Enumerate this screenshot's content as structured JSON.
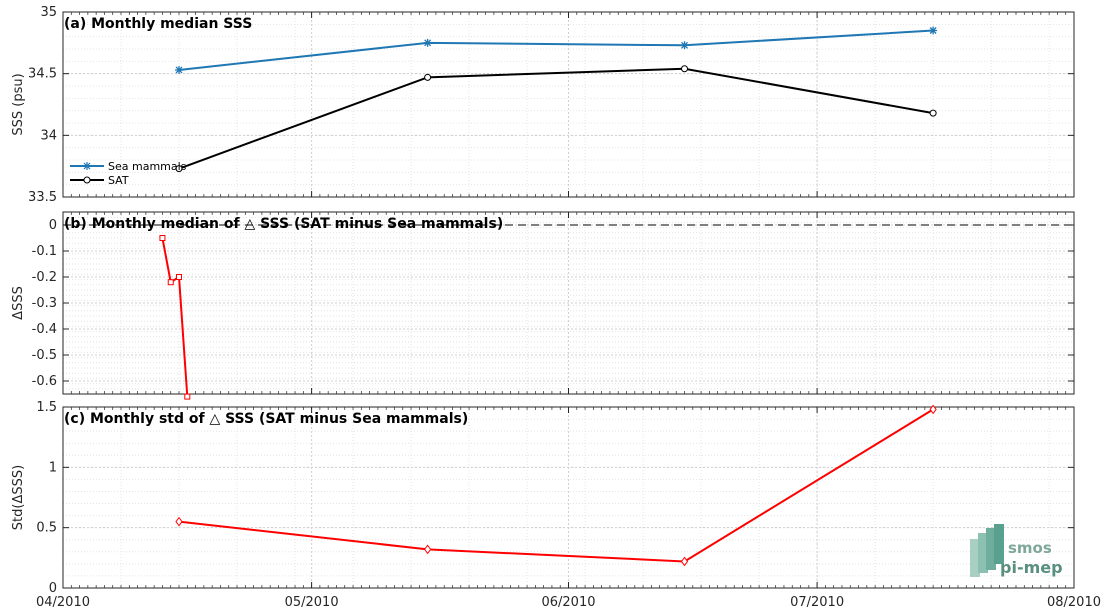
{
  "chart_data": [
    {
      "type": "line",
      "title": "(a) Monthly median SSS",
      "ylabel": "SSS (psu)",
      "xlim": [
        "2010-04-01",
        "2010-08-01"
      ],
      "ylim": [
        33.5,
        35
      ],
      "yticks": [
        "33.5",
        "34",
        "34.5",
        "35"
      ],
      "grid": true,
      "legend_position": "bottom-left",
      "series": [
        {
          "name": "Sea mammals",
          "color": "#1f77b4",
          "marker": "star",
          "x": [
            "2010-04-15",
            "2010-05-15",
            "2010-06-15",
            "2010-07-15"
          ],
          "values": [
            34.53,
            34.75,
            34.73,
            34.85
          ]
        },
        {
          "name": "SAT",
          "color": "#000000",
          "marker": "circle",
          "x": [
            "2010-04-15",
            "2010-05-15",
            "2010-06-15",
            "2010-07-15"
          ],
          "values": [
            33.73,
            34.47,
            34.54,
            34.18
          ]
        }
      ]
    },
    {
      "type": "line",
      "title": "(b) Monthly median of △ SSS (SAT minus Sea mammals)",
      "ylabel": "ΔSSS",
      "xlim": [
        "2010-04-01",
        "2010-08-01"
      ],
      "ylim": [
        -0.65,
        0.05
      ],
      "yticks": [
        "0",
        "-0.1",
        "-0.2",
        "-0.3",
        "-0.4",
        "-0.5",
        "-0.6"
      ],
      "grid": true,
      "reference_line": 0,
      "series": [
        {
          "color": "#ff0000",
          "marker": "square",
          "x": [
            "2010-04-13",
            "2010-04-14",
            "2010-04-15",
            "2010-04-16"
          ],
          "values": [
            -0.05,
            -0.22,
            -0.2,
            -0.66
          ]
        }
      ]
    },
    {
      "type": "line",
      "title": "(c) Monthly std of △ SSS (SAT minus Sea mammals)",
      "ylabel": "Std(ΔSSS)",
      "xlim": [
        "2010-04-01",
        "2010-08-01"
      ],
      "ylim": [
        0,
        1.5
      ],
      "yticks": [
        "0",
        "0.5",
        "1",
        "1.5"
      ],
      "grid": true,
      "xticks": [
        "04/2010",
        "05/2010",
        "06/2010",
        "07/2010",
        "08/2010"
      ],
      "series": [
        {
          "color": "#ff0000",
          "marker": "diamond",
          "x": [
            "2010-04-15",
            "2010-05-15",
            "2010-06-15",
            "2010-07-15"
          ],
          "values": [
            0.55,
            0.32,
            0.22,
            1.48
          ]
        }
      ]
    }
  ],
  "logo": {
    "line1": "smos",
    "line2": "pi-mep"
  }
}
